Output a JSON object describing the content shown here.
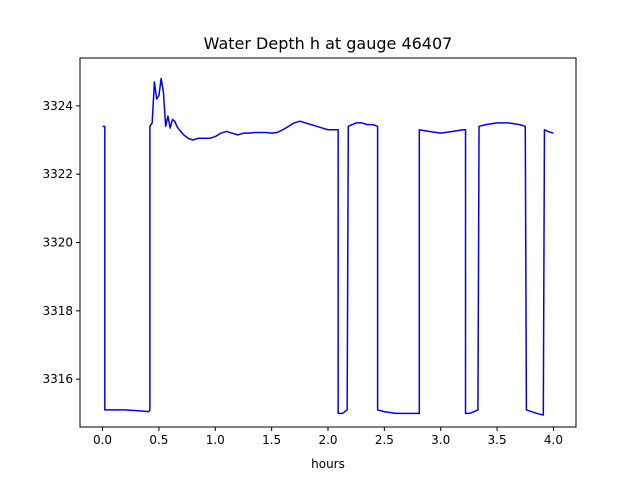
{
  "chart_data": {
    "type": "line",
    "title": "Water Depth h at gauge 46407",
    "xlabel": "hours",
    "ylabel": "",
    "xlim": [
      -0.2,
      4.2
    ],
    "ylim": [
      3314.6,
      3325.4
    ],
    "xticks": [
      0.0,
      0.5,
      1.0,
      1.5,
      2.0,
      2.5,
      3.0,
      3.5,
      4.0
    ],
    "xtick_labels": [
      "0.0",
      "0.5",
      "1.0",
      "1.5",
      "2.0",
      "2.5",
      "3.0",
      "3.5",
      "4.0"
    ],
    "yticks": [
      3316,
      3318,
      3320,
      3322,
      3324
    ],
    "ytick_labels": [
      "3316",
      "3318",
      "3320",
      "3322",
      "3324"
    ],
    "grid": false,
    "series": [
      {
        "color": "#0000ff",
        "x": [
          0.0,
          0.02,
          0.02,
          0.1,
          0.2,
          0.3,
          0.41,
          0.42,
          0.42,
          0.44,
          0.46,
          0.48,
          0.5,
          0.52,
          0.54,
          0.56,
          0.58,
          0.6,
          0.62,
          0.64,
          0.66,
          0.68,
          0.72,
          0.76,
          0.8,
          0.85,
          0.9,
          0.95,
          1.0,
          1.05,
          1.1,
          1.15,
          1.2,
          1.25,
          1.3,
          1.35,
          1.4,
          1.45,
          1.5,
          1.55,
          1.6,
          1.65,
          1.7,
          1.75,
          1.8,
          1.85,
          1.9,
          1.95,
          2.0,
          2.05,
          2.09,
          2.09,
          2.13,
          2.17,
          2.18,
          2.25,
          2.3,
          2.35,
          2.4,
          2.44,
          2.44,
          2.5,
          2.6,
          2.7,
          2.8,
          2.81,
          2.81,
          2.9,
          3.0,
          3.1,
          3.2,
          3.22,
          3.22,
          3.26,
          3.33,
          3.34,
          3.4,
          3.5,
          3.6,
          3.7,
          3.75,
          3.76,
          3.85,
          3.91,
          3.92,
          3.95,
          4.0
        ],
        "y": [
          3323.4,
          3323.4,
          3315.1,
          3315.1,
          3315.1,
          3315.08,
          3315.05,
          3315.1,
          3323.4,
          3323.5,
          3324.7,
          3324.2,
          3324.3,
          3324.8,
          3324.4,
          3323.4,
          3323.7,
          3323.35,
          3323.6,
          3323.55,
          3323.4,
          3323.3,
          3323.15,
          3323.05,
          3323.0,
          3323.05,
          3323.05,
          3323.05,
          3323.1,
          3323.2,
          3323.25,
          3323.2,
          3323.15,
          3323.2,
          3323.2,
          3323.22,
          3323.22,
          3323.22,
          3323.2,
          3323.22,
          3323.3,
          3323.4,
          3323.5,
          3323.55,
          3323.5,
          3323.45,
          3323.4,
          3323.35,
          3323.3,
          3323.3,
          3323.3,
          3315.0,
          3315.0,
          3315.1,
          3323.4,
          3323.5,
          3323.5,
          3323.45,
          3323.45,
          3323.4,
          3315.1,
          3315.05,
          3315.0,
          3315.0,
          3315.0,
          3315.0,
          3323.3,
          3323.25,
          3323.2,
          3323.25,
          3323.3,
          3323.3,
          3315.0,
          3315.0,
          3315.1,
          3323.4,
          3323.45,
          3323.5,
          3323.5,
          3323.45,
          3323.4,
          3315.1,
          3315.0,
          3314.95,
          3323.3,
          3323.25,
          3323.2
        ]
      }
    ]
  }
}
